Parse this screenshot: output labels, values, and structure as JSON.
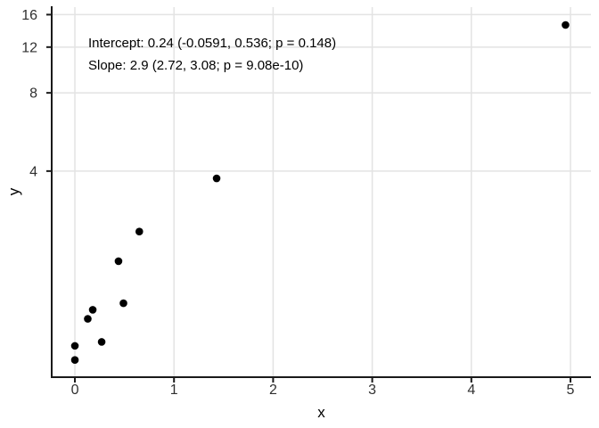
{
  "figure": {
    "background": "#ffffff",
    "colors": {
      "point": "#000000",
      "gridline": "#e3e3e3",
      "axis_line": "#1a1a1a",
      "tick_label": "#303030",
      "axis_title": "#000000",
      "annotation_text": "#000000"
    }
  },
  "chart_data": {
    "type": "scatter",
    "title": "",
    "xlabel": "x",
    "ylabel": "y",
    "x_ticks": [
      0,
      1,
      2,
      3,
      4,
      5
    ],
    "y_ticks": [
      4,
      8,
      12,
      16
    ],
    "x_scale": "linear",
    "y_scale": "log2",
    "xlim": [
      -0.234,
      5.207
    ],
    "ylim": [
      0.644,
      17.1
    ],
    "grid": "major-only",
    "legend": "none",
    "point_radius": 4.3,
    "points": [
      {
        "x": 0.0,
        "y": 0.75
      },
      {
        "x": 0.0,
        "y": 0.85
      },
      {
        "x": 0.13,
        "y": 1.08
      },
      {
        "x": 0.18,
        "y": 1.17
      },
      {
        "x": 0.27,
        "y": 0.88
      },
      {
        "x": 0.44,
        "y": 1.8
      },
      {
        "x": 0.49,
        "y": 1.24
      },
      {
        "x": 0.65,
        "y": 2.34
      },
      {
        "x": 1.43,
        "y": 3.75
      },
      {
        "x": 4.95,
        "y": 14.6
      }
    ],
    "annotation_lines": [
      "Intercept: 0.24 (-0.0591, 0.536; p = 0.148)",
      "Slope: 2.9 (2.72, 3.08; p = 9.08e-10)"
    ]
  }
}
